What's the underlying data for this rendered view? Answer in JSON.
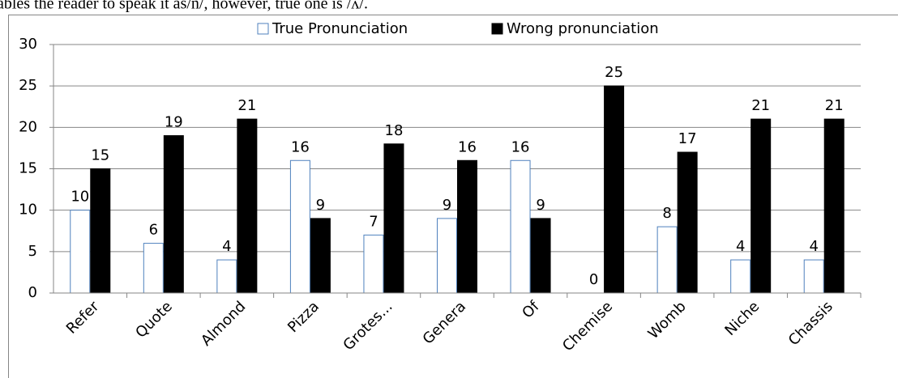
{
  "fragment_text": "ables the reader to speak it as/n/, however, true one is /ʌ/.",
  "chart_data": {
    "type": "bar",
    "categories": [
      "Refer",
      "Quote",
      "Almond",
      "Pizza",
      "Grotes...",
      "Genera",
      "Of",
      "Chemise",
      "Womb",
      "Niche",
      "Chassis"
    ],
    "series": [
      {
        "name": "True Pronunciation",
        "color": "#ffffff",
        "stroke": "#4f81bd",
        "values": [
          10,
          6,
          4,
          16,
          7,
          9,
          16,
          0,
          8,
          4,
          4
        ]
      },
      {
        "name": "Wrong pronunciation",
        "color": "#000000",
        "values": [
          15,
          19,
          21,
          9,
          18,
          16,
          9,
          25,
          17,
          21,
          21
        ]
      }
    ],
    "ylim": [
      0,
      30
    ],
    "yticks": [
      0,
      5,
      10,
      15,
      20,
      25,
      30
    ],
    "grid": true,
    "legend": "top"
  }
}
